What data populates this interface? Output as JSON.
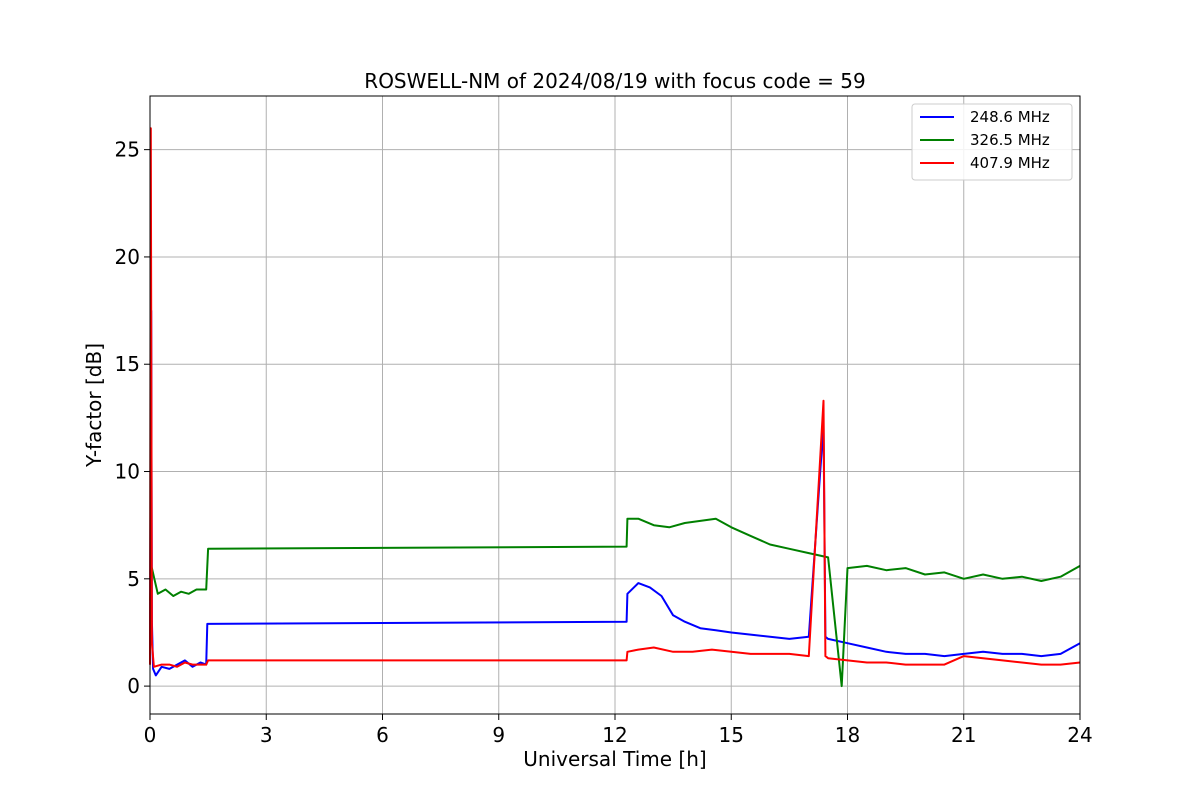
{
  "chart_data": {
    "type": "line",
    "title": "ROSWELL-NM of 2024/08/19 with focus code = 59",
    "xlabel": "Universal Time [h]",
    "ylabel": "Y-factor [dB]",
    "xlim": [
      0,
      24
    ],
    "ylim": [
      -1.3,
      27.5
    ],
    "xticks": [
      0,
      3,
      6,
      9,
      12,
      15,
      18,
      21,
      24
    ],
    "yticks": [
      0,
      5,
      10,
      15,
      20,
      25
    ],
    "grid": true,
    "legend_position": "top-right",
    "series": [
      {
        "name": "248.6 MHz",
        "color": "#0000ff",
        "x": [
          0,
          0.03,
          0.05,
          0.08,
          0.15,
          0.3,
          0.5,
          0.7,
          0.9,
          1.1,
          1.3,
          1.45,
          1.48,
          12.3,
          12.32,
          12.6,
          12.9,
          13.2,
          13.5,
          13.8,
          14.2,
          14.6,
          15.0,
          15.5,
          16.0,
          16.5,
          17.0,
          17.38,
          17.43,
          17.5,
          18.0,
          18.5,
          19.0,
          19.5,
          20.0,
          20.5,
          21.0,
          21.5,
          22.0,
          22.5,
          23.0,
          23.5,
          24.0
        ],
        "y": [
          1.0,
          17.5,
          3.0,
          0.8,
          0.5,
          0.9,
          0.8,
          1.0,
          1.2,
          0.9,
          1.1,
          1.0,
          2.9,
          3.0,
          4.3,
          4.8,
          4.6,
          4.2,
          3.3,
          3.0,
          2.7,
          2.6,
          2.5,
          2.4,
          2.3,
          2.2,
          2.3,
          12.2,
          2.3,
          2.2,
          2.0,
          1.8,
          1.6,
          1.5,
          1.5,
          1.4,
          1.5,
          1.6,
          1.5,
          1.5,
          1.4,
          1.5,
          2.0
        ]
      },
      {
        "name": "326.5 MHz",
        "color": "#008000",
        "x": [
          0,
          0.05,
          0.2,
          0.4,
          0.6,
          0.8,
          1.0,
          1.2,
          1.45,
          1.5,
          12.3,
          12.32,
          12.6,
          13.0,
          13.4,
          13.8,
          14.2,
          14.6,
          15.0,
          15.5,
          16.0,
          16.5,
          17.0,
          17.5,
          17.85,
          18.0,
          18.5,
          19.0,
          19.5,
          20.0,
          20.5,
          21.0,
          21.5,
          22.0,
          22.5,
          23.0,
          23.5,
          24.0
        ],
        "y": [
          4.0,
          5.5,
          4.3,
          4.5,
          4.2,
          4.4,
          4.3,
          4.5,
          4.5,
          6.4,
          6.5,
          7.8,
          7.8,
          7.5,
          7.4,
          7.6,
          7.7,
          7.8,
          7.4,
          7.0,
          6.6,
          6.4,
          6.2,
          6.0,
          0.0,
          5.5,
          5.6,
          5.4,
          5.5,
          5.2,
          5.3,
          5.0,
          5.2,
          5.0,
          5.1,
          4.9,
          5.1,
          5.6
        ]
      },
      {
        "name": "407.9 MHz",
        "color": "#ff0000",
        "x": [
          0,
          0.02,
          0.05,
          0.1,
          0.3,
          0.5,
          0.7,
          0.9,
          1.1,
          1.3,
          1.45,
          1.5,
          12.3,
          12.32,
          12.6,
          13.0,
          13.5,
          14.0,
          14.5,
          15.0,
          15.5,
          16.0,
          16.5,
          17.0,
          17.38,
          17.43,
          17.5,
          18.0,
          18.5,
          19.0,
          19.5,
          20.0,
          20.5,
          21.0,
          21.5,
          22.0,
          22.5,
          23.0,
          23.5,
          24.0
        ],
        "y": [
          1.0,
          26.0,
          2.0,
          0.9,
          1.0,
          1.0,
          0.9,
          1.1,
          1.0,
          1.0,
          1.0,
          1.2,
          1.2,
          1.6,
          1.7,
          1.8,
          1.6,
          1.6,
          1.7,
          1.6,
          1.5,
          1.5,
          1.5,
          1.4,
          13.3,
          1.4,
          1.3,
          1.2,
          1.1,
          1.1,
          1.0,
          1.0,
          1.0,
          1.4,
          1.3,
          1.2,
          1.1,
          1.0,
          1.0,
          1.1
        ]
      }
    ]
  }
}
